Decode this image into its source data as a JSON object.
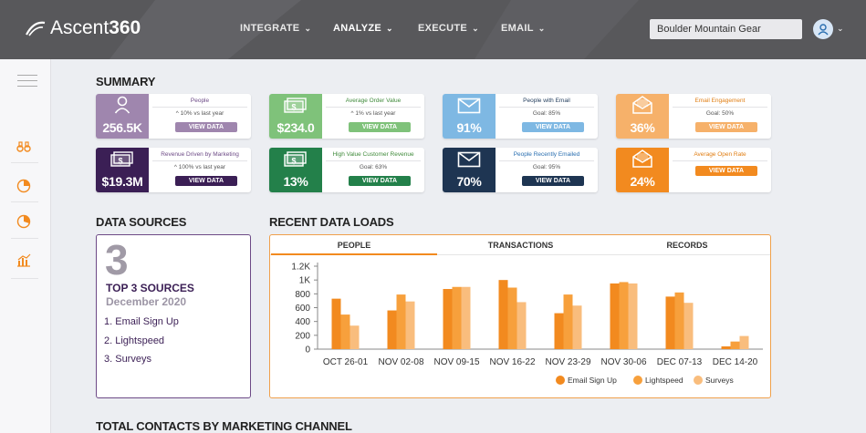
{
  "app": {
    "brand": "Ascent",
    "brand_bold": "360"
  },
  "nav": [
    {
      "label": "INTEGRATE",
      "active": false
    },
    {
      "label": "ANALYZE",
      "active": true
    },
    {
      "label": "EXECUTE",
      "active": false
    },
    {
      "label": "EMAIL",
      "active": false
    }
  ],
  "account": {
    "value": "Boulder Mountain Gear"
  },
  "summary": {
    "title": "SUMMARY",
    "cards": [
      {
        "label": "People",
        "value": "256.5K",
        "sub": "^ 10% vs last year",
        "button": "VIEW DATA",
        "icon": "person-icon",
        "tile_color": "#9f86ae",
        "btn_color": "#9f86ae",
        "label_color": "#6d4a86"
      },
      {
        "label": "Average Order Value",
        "value": "$234.0",
        "sub": "^ 1% vs last year",
        "button": "VIEW DATA",
        "icon": "cash-icon",
        "tile_color": "#7fc27a",
        "btn_color": "#7fc27a",
        "label_color": "#3f8a3a"
      },
      {
        "label": "People with Email",
        "value": "91%",
        "sub": "Goal: 85%",
        "button": "VIEW DATA",
        "icon": "envelope-icon",
        "tile_color": "#7eb8e3",
        "btn_color": "#7eb8e3",
        "label_color": "#1f3a5a"
      },
      {
        "label": "Email Engagement",
        "value": "36%",
        "sub": "Goal: 50%",
        "button": "VIEW DATA",
        "icon": "open-mail-icon",
        "tile_color": "#f6b16a",
        "btn_color": "#f6b16a",
        "label_color": "#e07d12"
      },
      {
        "label": "Revenue Driven by Marketing",
        "value": "$19.3M",
        "sub": "^ 100% vs last year",
        "button": "VIEW DATA",
        "icon": "cash-icon",
        "tile_color": "#3b1f55",
        "btn_color": "#3b1f55",
        "label_color": "#6d4a86"
      },
      {
        "label": "High Value Customer Revenue",
        "value": "13%",
        "sub": "Goal: 63%",
        "button": "VIEW DATA",
        "icon": "cash-icon",
        "tile_color": "#23804a",
        "btn_color": "#23804a",
        "label_color": "#3f8a3a"
      },
      {
        "label": "People Recently Emailed",
        "value": "70%",
        "sub": "Goal: 95%",
        "button": "VIEW DATA",
        "icon": "envelope-icon",
        "tile_color": "#1e3552",
        "btn_color": "#1e3552",
        "label_color": "#2a6fb0"
      },
      {
        "label": "Average Open Rate",
        "value": "24%",
        "sub": "",
        "button": "VIEW DATA",
        "icon": "open-mail-icon",
        "tile_color": "#f28a1f",
        "btn_color": "#f28a1f",
        "label_color": "#e07d12"
      }
    ]
  },
  "data_sources": {
    "title": "DATA SOURCES",
    "count": "3",
    "top_label": "TOP 3 SOURCES",
    "period": "December 2020",
    "items": [
      "1. Email Sign Up",
      "2. Lightspeed",
      "3. Surveys"
    ]
  },
  "recent_loads": {
    "title": "RECENT DATA LOADS",
    "tabs": [
      "PEOPLE",
      "TRANSACTIONS",
      "RECORDS"
    ],
    "active_tab": "PEOPLE"
  },
  "total_contacts": {
    "title": "TOTAL CONTACTS BY MARKETING CHANNEL"
  },
  "chart_data": {
    "type": "bar",
    "categories": [
      "OCT 26-01",
      "NOV 02-08",
      "NOV 09-15",
      "NOV 16-22",
      "NOV 23-29",
      "NOV 30-06",
      "DEC 07-13",
      "DEC 14-20"
    ],
    "series": [
      {
        "name": "Email Sign Up",
        "color": "#f28a1f",
        "values": [
          730,
          560,
          870,
          1000,
          520,
          950,
          760,
          40
        ]
      },
      {
        "name": "Lightspeed",
        "color": "#f7a03c",
        "values": [
          500,
          790,
          900,
          890,
          790,
          970,
          820,
          110
        ]
      },
      {
        "name": "Surveys",
        "color": "#f9bd7d",
        "values": [
          340,
          690,
          900,
          680,
          630,
          950,
          670,
          190
        ]
      }
    ],
    "yticks": [
      "0",
      "200",
      "400",
      "600",
      "800",
      "1K",
      "1.2K"
    ],
    "ylim": [
      0,
      1200
    ],
    "legend": "bottom-right",
    "grid": false
  }
}
